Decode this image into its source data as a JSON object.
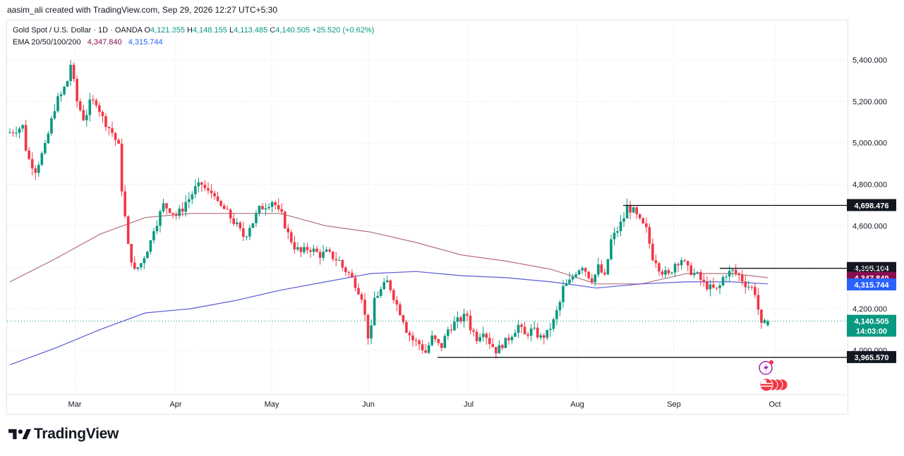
{
  "header": {
    "creator_line": "aasim_ali created with TradingView.com, Sep 29, 2026 12:27 UTC+5:30"
  },
  "legend": {
    "symbol": "Gold Spot / U.S. Dollar · 1D · OANDA",
    "o_label": "O",
    "o": "4,121.355",
    "h_label": "H",
    "h": "4,148.155",
    "l_label": "L",
    "l": "4,113.485",
    "c_label": "C",
    "c": "4,140.505",
    "change": "+25.520 (+0.62%)",
    "ema_label": "EMA 20/50/100/200",
    "ema_a": "4,347.840",
    "ema_b": "4,315.744"
  },
  "colors": {
    "up": "#089981",
    "down": "#f23645",
    "ema_a": "#b2707a",
    "ema_b": "#5b5bd6",
    "grid": "#e6e8ee",
    "level_line": "#000000"
  },
  "branding": {
    "logo_text": "TradingView",
    "logo_icon": "tradingview-logo-icon"
  },
  "chart_data": {
    "type": "candlestick",
    "title": "Gold Spot / U.S. Dollar · 1D · OANDA",
    "x_tick_labels": [
      "Mar",
      "Apr",
      "May",
      "Jun",
      "Jul",
      "Aug",
      "Sep",
      "Oct"
    ],
    "y_tick_labels": [
      "4,000.000",
      "4,200.000",
      "4,400.000",
      "4,600.000",
      "4,800.000",
      "5,000.000",
      "5,200.000",
      "5,400.000"
    ],
    "y_ticks": [
      4000,
      4200,
      4400,
      4600,
      4800,
      5000,
      5200,
      5400
    ],
    "ylim": [
      3800,
      5560
    ],
    "grid": true,
    "horizontal_levels": [
      {
        "value": 4698.476,
        "label": "4,698.476"
      },
      {
        "value": 4395.104,
        "label": "4,395.104"
      },
      {
        "value": 3965.57,
        "label": "3,965.570"
      }
    ],
    "price_tags": [
      {
        "value": 4347.84,
        "label": "4,347.840",
        "color": "#880e4f"
      },
      {
        "value": 4315.744,
        "label": "4,315.744",
        "color": "#2962ff"
      },
      {
        "value": 4140.505,
        "label": "4,140.505",
        "sublabel": "14:03:00",
        "color": "#089981"
      }
    ],
    "ema_lines": [
      {
        "name": "EMA 20/50/100/200",
        "value_label": "4,347.840",
        "anchors": [
          [
            0,
            4330
          ],
          [
            15,
            4440
          ],
          [
            30,
            4560
          ],
          [
            45,
            4640
          ],
          [
            60,
            4660
          ],
          [
            75,
            4660
          ],
          [
            90,
            4660
          ],
          [
            105,
            4600
          ],
          [
            120,
            4570
          ],
          [
            135,
            4520
          ],
          [
            150,
            4460
          ],
          [
            165,
            4430
          ],
          [
            180,
            4390
          ],
          [
            195,
            4320
          ],
          [
            210,
            4320
          ],
          [
            225,
            4370
          ],
          [
            240,
            4370
          ],
          [
            252,
            4350
          ]
        ]
      },
      {
        "name": "EMA 20/50/100/200",
        "value_label": "4,315.744",
        "anchors": [
          [
            0,
            3930
          ],
          [
            15,
            4010
          ],
          [
            30,
            4100
          ],
          [
            45,
            4180
          ],
          [
            60,
            4200
          ],
          [
            75,
            4240
          ],
          [
            90,
            4290
          ],
          [
            105,
            4330
          ],
          [
            120,
            4370
          ],
          [
            135,
            4380
          ],
          [
            150,
            4360
          ],
          [
            165,
            4350
          ],
          [
            180,
            4330
          ],
          [
            195,
            4300
          ],
          [
            210,
            4320
          ],
          [
            225,
            4330
          ],
          [
            240,
            4330
          ],
          [
            252,
            4320
          ]
        ]
      }
    ],
    "candles": []
  }
}
